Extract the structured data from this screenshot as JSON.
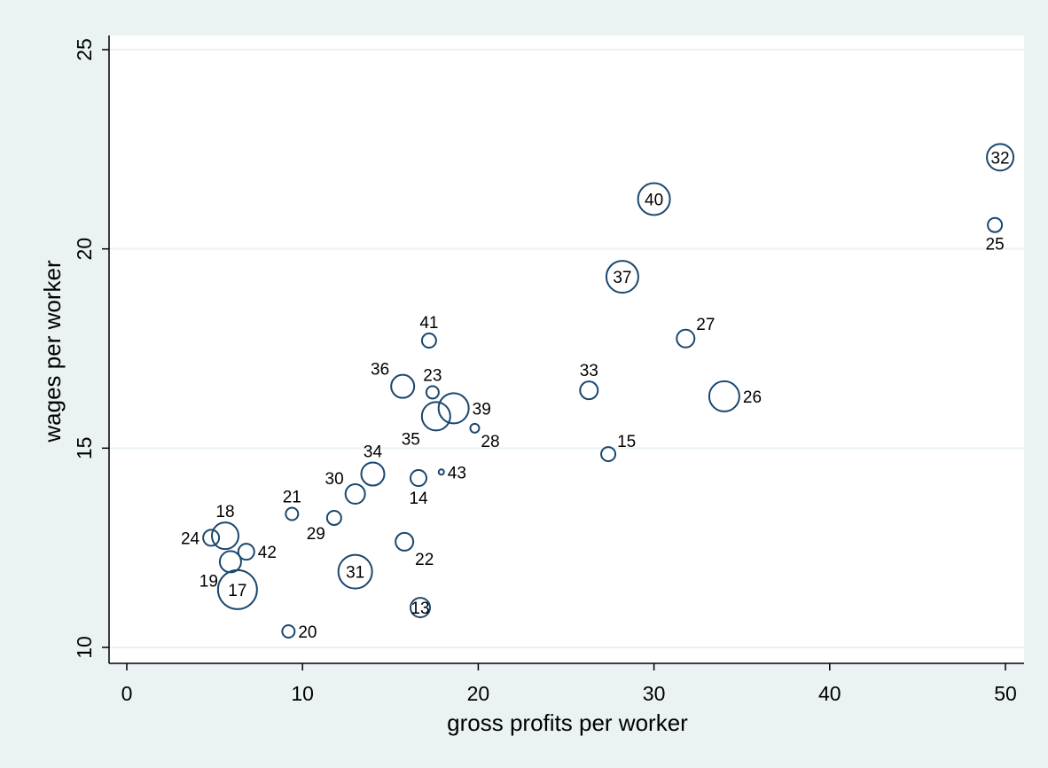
{
  "chart_data": {
    "type": "scatter",
    "title": "",
    "xlabel": "gross profits per worker",
    "ylabel": "wages per worker",
    "xlim": [
      0,
      50
    ],
    "ylim": [
      10,
      25
    ],
    "xticks": [
      "0",
      "10",
      "20",
      "30",
      "40",
      "50"
    ],
    "yticks": [
      "10",
      "15",
      "20",
      "25"
    ],
    "grid": "horizontal",
    "legend": "none",
    "marker": "hollow-circle, size weighted",
    "colors": {
      "background": "#eaf2f3",
      "plot_area": "#ffffff",
      "marker": "#1a476f",
      "gridline": "#eaf2f3",
      "axis": "#000000"
    },
    "points": [
      {
        "label": "13",
        "x": 16.7,
        "y": 11.0,
        "size": 11,
        "label_pos": "inside"
      },
      {
        "label": "14",
        "x": 16.6,
        "y": 14.25,
        "size": 9,
        "label_pos": "below"
      },
      {
        "label": "15",
        "x": 27.4,
        "y": 14.85,
        "size": 8,
        "label_pos": "upper-right"
      },
      {
        "label": "17",
        "x": 6.3,
        "y": 11.45,
        "size": 22,
        "label_pos": "inside"
      },
      {
        "label": "18",
        "x": 5.6,
        "y": 12.8,
        "size": 15,
        "label_pos": "above"
      },
      {
        "label": "19",
        "x": 5.9,
        "y": 12.15,
        "size": 12,
        "label_pos": "lower-left"
      },
      {
        "label": "20",
        "x": 9.2,
        "y": 10.4,
        "size": 7,
        "label_pos": "right"
      },
      {
        "label": "21",
        "x": 9.4,
        "y": 13.35,
        "size": 7,
        "label_pos": "above"
      },
      {
        "label": "22",
        "x": 15.8,
        "y": 12.65,
        "size": 10,
        "label_pos": "lower-right"
      },
      {
        "label": "23",
        "x": 17.4,
        "y": 16.4,
        "size": 7,
        "label_pos": "above"
      },
      {
        "label": "24",
        "x": 4.8,
        "y": 12.75,
        "size": 9,
        "label_pos": "left"
      },
      {
        "label": "25",
        "x": 49.4,
        "y": 20.6,
        "size": 8,
        "label_pos": "below"
      },
      {
        "label": "26",
        "x": 34.0,
        "y": 16.3,
        "size": 17,
        "label_pos": "right"
      },
      {
        "label": "27",
        "x": 31.8,
        "y": 17.75,
        "size": 10,
        "label_pos": "upper-right"
      },
      {
        "label": "28",
        "x": 19.8,
        "y": 15.5,
        "size": 5,
        "label_pos": "lower-right"
      },
      {
        "label": "29",
        "x": 11.8,
        "y": 13.25,
        "size": 8,
        "label_pos": "lower-left"
      },
      {
        "label": "30",
        "x": 13.0,
        "y": 13.85,
        "size": 11,
        "label_pos": "upper-left"
      },
      {
        "label": "31",
        "x": 13.0,
        "y": 11.9,
        "size": 19,
        "label_pos": "inside"
      },
      {
        "label": "32",
        "x": 49.7,
        "y": 22.3,
        "size": 15,
        "label_pos": "inside"
      },
      {
        "label": "33",
        "x": 26.3,
        "y": 16.45,
        "size": 10,
        "label_pos": "above"
      },
      {
        "label": "34",
        "x": 14.0,
        "y": 14.35,
        "size": 13,
        "label_pos": "above"
      },
      {
        "label": "35",
        "x": 17.6,
        "y": 15.8,
        "size": 16,
        "label_pos": "lower-left"
      },
      {
        "label": "36",
        "x": 15.7,
        "y": 16.55,
        "size": 13,
        "label_pos": "upper-left"
      },
      {
        "label": "37",
        "x": 28.2,
        "y": 19.3,
        "size": 18,
        "label_pos": "inside"
      },
      {
        "label": "39",
        "x": 18.6,
        "y": 16.0,
        "size": 17,
        "label_pos": "right"
      },
      {
        "label": "40",
        "x": 30.0,
        "y": 21.25,
        "size": 18,
        "label_pos": "inside"
      },
      {
        "label": "41",
        "x": 17.2,
        "y": 17.7,
        "size": 8,
        "label_pos": "above"
      },
      {
        "label": "42",
        "x": 6.8,
        "y": 12.4,
        "size": 9,
        "label_pos": "right"
      },
      {
        "label": "43",
        "x": 17.9,
        "y": 14.4,
        "size": 3,
        "label_pos": "right"
      }
    ]
  }
}
